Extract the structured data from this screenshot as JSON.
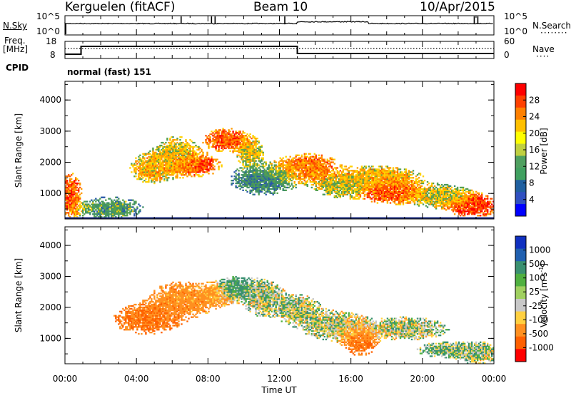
{
  "header": {
    "station": "Kerguelen (fitACF)",
    "beam": "Beam 10",
    "date": "10/Apr/2015"
  },
  "noise_panel": {
    "left_label": "N.Sky",
    "right_label": "N.Search",
    "left_ticks": [
      "10^5",
      "10^0"
    ],
    "right_ticks": [
      "10^5",
      "10^0"
    ]
  },
  "freq_panel": {
    "left_label_line1": "Freq.",
    "left_label_line2": "[MHz]",
    "right_label": "Nave",
    "left_ticks": [
      "18",
      "8"
    ],
    "right_ticks": [
      "60",
      "0"
    ],
    "cpid_label": "CPID",
    "mode_text": "normal (fast) 151"
  },
  "power_panel": {
    "ylabel": "Slant Range [km]",
    "yticks": [
      "4000",
      "3000",
      "2000",
      "1000"
    ],
    "colorbar_label": "Power [dB]",
    "colorbar_ticks": [
      "28",
      "24",
      "20",
      "16",
      "12",
      "8",
      "4"
    ],
    "colorbar_colors": [
      "#ff0000",
      "#ff4000",
      "#ff8000",
      "#ffc000",
      "#ffff00",
      "#c0d040",
      "#4fa060",
      "#40a060",
      "#2060a0",
      "#3050c0",
      "#0000ff"
    ]
  },
  "velocity_panel": {
    "ylabel": "Slant Range [km]",
    "yticks": [
      "4000",
      "3000",
      "2000",
      "1000"
    ],
    "colorbar_label": "Velocity [m s",
    "colorbar_label_sup": "-1",
    "colorbar_label_end": "]",
    "colorbar_ticks": [
      "1000",
      "500",
      "100",
      "25",
      "-25",
      "-100",
      "-500",
      "-1000"
    ],
    "colorbar_colors": [
      "#1030c0",
      "#2060b0",
      "#3a9070",
      "#50b040",
      "#a0d060",
      "#c8c8c8",
      "#ffd040",
      "#ff9020",
      "#ff6000",
      "#ff0000"
    ]
  },
  "xaxis": {
    "label": "Time UT",
    "ticks": [
      "00:00",
      "04:00",
      "08:00",
      "12:00",
      "16:00",
      "20:00",
      "00:00"
    ]
  },
  "chart_data": {
    "type": "heatmap",
    "x_range_hours": [
      0,
      24
    ],
    "y_range_km": [
      180,
      4600
    ],
    "power_blobs": [
      {
        "t": 0.3,
        "r": 900,
        "dt": 0.5,
        "dr": 600,
        "value": 26
      },
      {
        "t": 2.5,
        "r": 500,
        "dt": 1.5,
        "dr": 300,
        "value": 12
      },
      {
        "t": 4.8,
        "r": 1800,
        "dt": 1.0,
        "dr": 400,
        "value": 20
      },
      {
        "t": 6.2,
        "r": 2200,
        "dt": 1.0,
        "dr": 500,
        "value": 18
      },
      {
        "t": 7.2,
        "r": 1900,
        "dt": 1.2,
        "dr": 300,
        "value": 26
      },
      {
        "t": 9.0,
        "r": 2700,
        "dt": 1.0,
        "dr": 300,
        "value": 26
      },
      {
        "t": 10.3,
        "r": 2300,
        "dt": 0.6,
        "dr": 400,
        "value": 18
      },
      {
        "t": 11.0,
        "r": 1400,
        "dt": 1.5,
        "dr": 400,
        "value": 10
      },
      {
        "t": 13.5,
        "r": 1800,
        "dt": 1.5,
        "dr": 400,
        "value": 24
      },
      {
        "t": 15.5,
        "r": 1200,
        "dt": 1.2,
        "dr": 300,
        "value": 16
      },
      {
        "t": 17.5,
        "r": 1500,
        "dt": 2.0,
        "dr": 300,
        "value": 20
      },
      {
        "t": 18.3,
        "r": 1000,
        "dt": 1.5,
        "dr": 300,
        "value": 26
      },
      {
        "t": 21.0,
        "r": 900,
        "dt": 1.5,
        "dr": 300,
        "value": 16
      },
      {
        "t": 22.8,
        "r": 600,
        "dt": 1.3,
        "dr": 300,
        "value": 28
      }
    ],
    "velocity_blobs": [
      {
        "t": 4.5,
        "r": 1600,
        "dt": 1.5,
        "dr": 400,
        "value": -300
      },
      {
        "t": 6.5,
        "r": 2200,
        "dt": 1.5,
        "dr": 500,
        "value": -200
      },
      {
        "t": 8.5,
        "r": 2400,
        "dt": 0.8,
        "dr": 300,
        "value": -150
      },
      {
        "t": 9.5,
        "r": 2600,
        "dt": 0.8,
        "dr": 300,
        "value": 150
      },
      {
        "t": 11.0,
        "r": 2300,
        "dt": 1.0,
        "dr": 500,
        "value": 0
      },
      {
        "t": 13.0,
        "r": 1900,
        "dt": 1.0,
        "dr": 400,
        "value": 0
      },
      {
        "t": 15.0,
        "r": 1400,
        "dt": 1.5,
        "dr": 400,
        "value": 0
      },
      {
        "t": 16.5,
        "r": 900,
        "dt": 0.8,
        "dr": 400,
        "value": -300
      },
      {
        "t": 19.0,
        "r": 1300,
        "dt": 2.0,
        "dr": 300,
        "value": 0
      },
      {
        "t": 21.5,
        "r": 600,
        "dt": 1.5,
        "dr": 200,
        "value": 50
      },
      {
        "t": 23.0,
        "r": 500,
        "dt": 1.0,
        "dr": 300,
        "value": 0
      }
    ]
  }
}
